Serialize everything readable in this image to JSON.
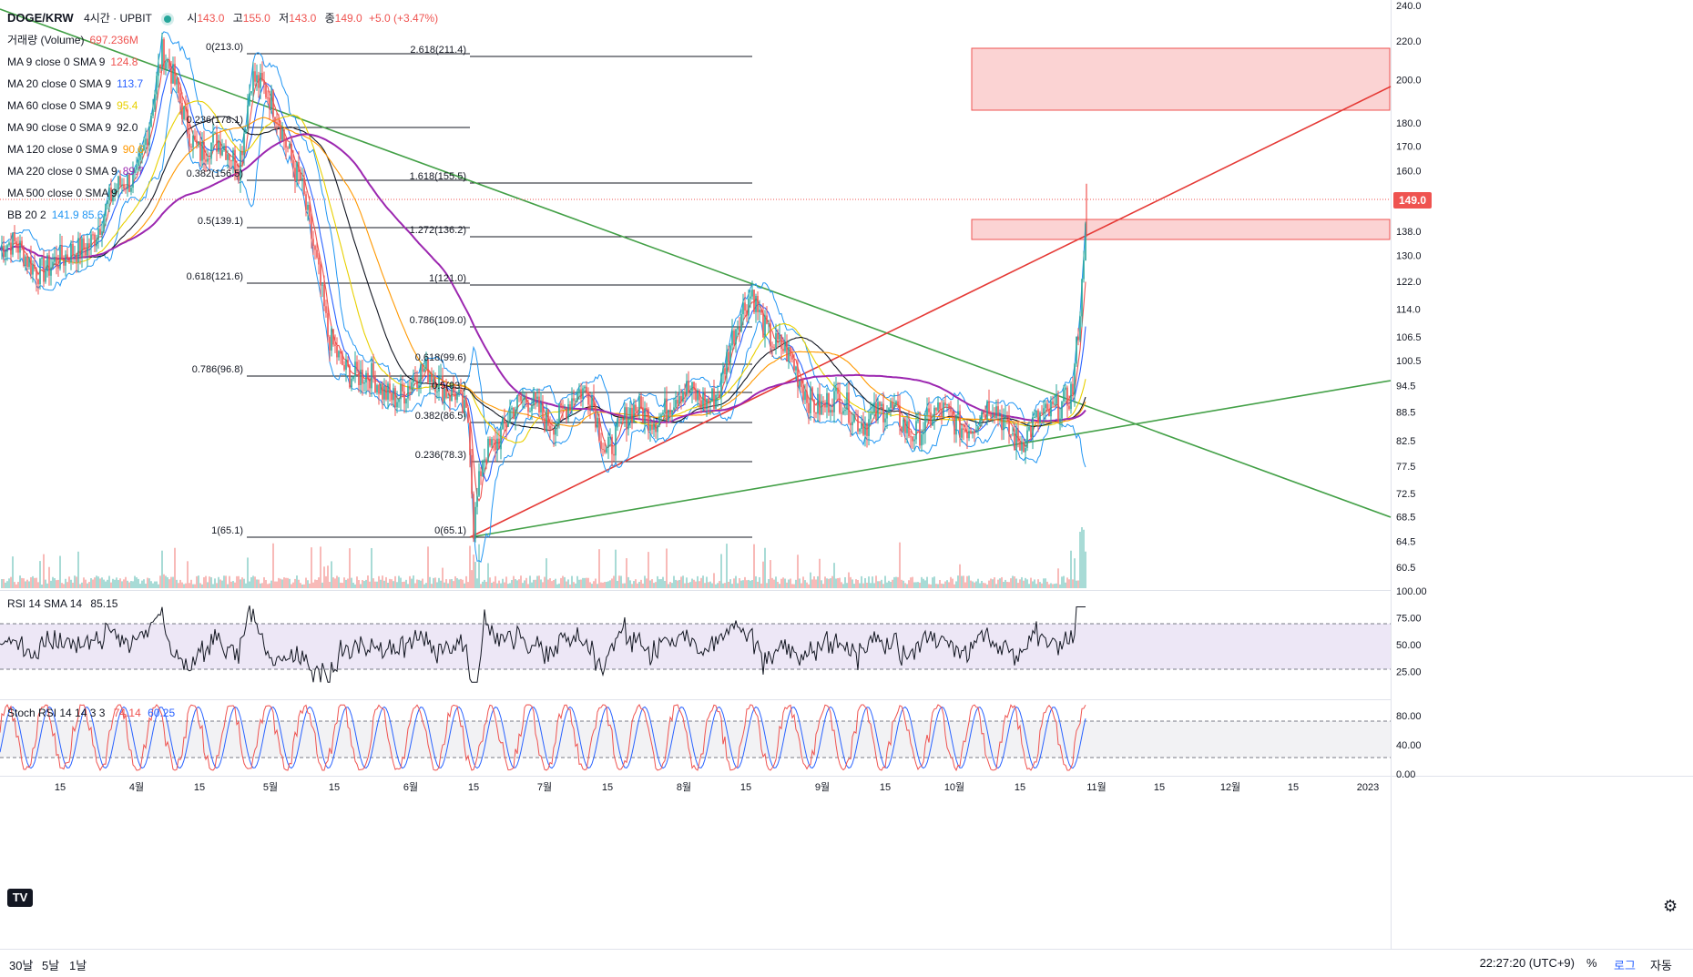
{
  "header": {
    "symbol": "DOGE/KRW",
    "interval": "4시간",
    "exchange": "UPBIT",
    "ohlc": [
      {
        "k": "시",
        "v": "143.0"
      },
      {
        "k": "고",
        "v": "155.0"
      },
      {
        "k": "저",
        "v": "143.0"
      },
      {
        "k": "종",
        "v": "149.0"
      }
    ],
    "change": "+5.0 (+3.47%)"
  },
  "indicators": [
    {
      "name": "거래량 (Volume)",
      "value": "697.236M",
      "color": "#ef5350"
    },
    {
      "name": "MA 9 close 0 SMA 9",
      "value": "124.8",
      "color": "#ef5350"
    },
    {
      "name": "MA 20 close 0 SMA 9",
      "value": "113.7",
      "color": "#2962ff"
    },
    {
      "name": "MA 60 close 0 SMA 9",
      "value": "95.4",
      "color": "#e8d000"
    },
    {
      "name": "MA 90 close 0 SMA 9",
      "value": "92.0",
      "color": "#131722"
    },
    {
      "name": "MA 120 close 0 SMA 9",
      "value": "90.6",
      "color": "#ff9800"
    },
    {
      "name": "MA 220 close 0 SMA 9",
      "value": "89.7",
      "color": "#9c27b0"
    },
    {
      "name": "MA 500 close 0 SMA 9",
      "value": "",
      "color": "#b2b5be"
    },
    {
      "name": "BB 20 2",
      "value": "141.9  85.6",
      "color": "#2196f3"
    }
  ],
  "rsi": {
    "label": "RSI 14 SMA 14",
    "value": "85.15",
    "ticks": [
      "100.00",
      "75.00",
      "50.00",
      "25.00"
    ],
    "color": "#131722"
  },
  "stoch": {
    "label": "Stoch RSI 14 14 3 3",
    "k": "74.14",
    "d": "60.25",
    "ticks": [
      "80.00",
      "40.00",
      "0.00"
    ],
    "k_color": "#ef5350",
    "d_color": "#2962ff"
  },
  "price_scale_ticks": [
    "240.0",
    "220.0",
    "200.0",
    "180.0",
    "170.0",
    "160.0",
    "149.0",
    "138.0",
    "130.0",
    "122.0",
    "114.0",
    "106.5",
    "100.5",
    "94.5",
    "88.5",
    "82.5",
    "77.5",
    "72.5",
    "68.5",
    "64.5",
    "60.5"
  ],
  "last_price": "149.0",
  "time_axis": [
    "15",
    "4월",
    "15",
    "5월",
    "15",
    "6월",
    "15",
    "7월",
    "15",
    "8월",
    "15",
    "9월",
    "15",
    "10월",
    "15",
    "11월",
    "15",
    "12월",
    "15",
    "2023"
  ],
  "fib_left": [
    "0(213.0)",
    "0.236(178.1)",
    "0.382(156.5)",
    "0.5(139.1)",
    "0.618(121.6)",
    "0.786(96.8)",
    "1(65.1)"
  ],
  "fib_right_upper": [
    "2.618(211.4)",
    "1.618(155.5)",
    "1.272(136.2)",
    "1(121.0)",
    "0.786(109.0)",
    "0.618(99.6)"
  ],
  "fib_right_lower": [
    "0.5(93.)",
    "0.382(86.5)",
    "0.236(78.3)",
    "0(65.1)"
  ],
  "bottom_bar": {
    "timeframes": [
      "30날",
      "5날",
      "1날"
    ],
    "clock": "22:27:20 (UTC+9)",
    "percent": "%",
    "log": "로그",
    "auto": "자동"
  },
  "colors": {
    "up": "#26a69a",
    "down": "#ef5350",
    "candle": "#ef5350",
    "trend_green": "#43a047",
    "trend_red": "#e53935",
    "zone": "#f8bbbb",
    "rsi_band": "#ede7f6",
    "stoch_band": "#f0f0f0"
  },
  "chart_data": {
    "type": "line",
    "title": "DOGE/KRW 4시간 UPBIT",
    "series": [
      {
        "name": "close",
        "x": [
          "03-01",
          "03-15",
          "04-01",
          "04-04",
          "04-15",
          "05-01",
          "05-02",
          "05-10",
          "05-12",
          "05-20",
          "06-01",
          "06-10",
          "06-15",
          "06-18",
          "06-20",
          "06-25",
          "07-01",
          "07-10",
          "07-15",
          "08-01",
          "08-10",
          "08-15",
          "08-20",
          "09-01",
          "09-10",
          "09-20",
          "10-01",
          "10-10",
          "10-20",
          "10-25",
          "10-28",
          "10-30",
          "10-31"
        ],
        "y": [
          132,
          126,
          160,
          210,
          170,
          165,
          205,
          160,
          105,
          92,
          96,
          95,
          85,
          65,
          78,
          90,
          88,
          92,
          82,
          88,
          94,
          121,
          104,
          90,
          88,
          86,
          87,
          88,
          84,
          86,
          96,
          120,
          149
        ]
      },
      {
        "name": "MA 9",
        "x": [
          "10-31"
        ],
        "y": [
          124.8
        ]
      },
      {
        "name": "MA 20",
        "x": [
          "10-31"
        ],
        "y": [
          113.7
        ]
      },
      {
        "name": "MA 60",
        "x": [
          "10-31"
        ],
        "y": [
          95.4
        ]
      },
      {
        "name": "MA 90",
        "x": [
          "10-31"
        ],
        "y": [
          92.0
        ]
      },
      {
        "name": "MA 120",
        "x": [
          "10-31"
        ],
        "y": [
          90.6
        ]
      },
      {
        "name": "MA 220",
        "x": [
          "10-31"
        ],
        "y": [
          89.7
        ]
      }
    ],
    "volume_last": "697.236M",
    "rsi_last": 85.15,
    "stoch_k_last": 74.14,
    "stoch_d_last": 60.25,
    "ylim": [
      58,
      245
    ],
    "log_scale": true
  }
}
